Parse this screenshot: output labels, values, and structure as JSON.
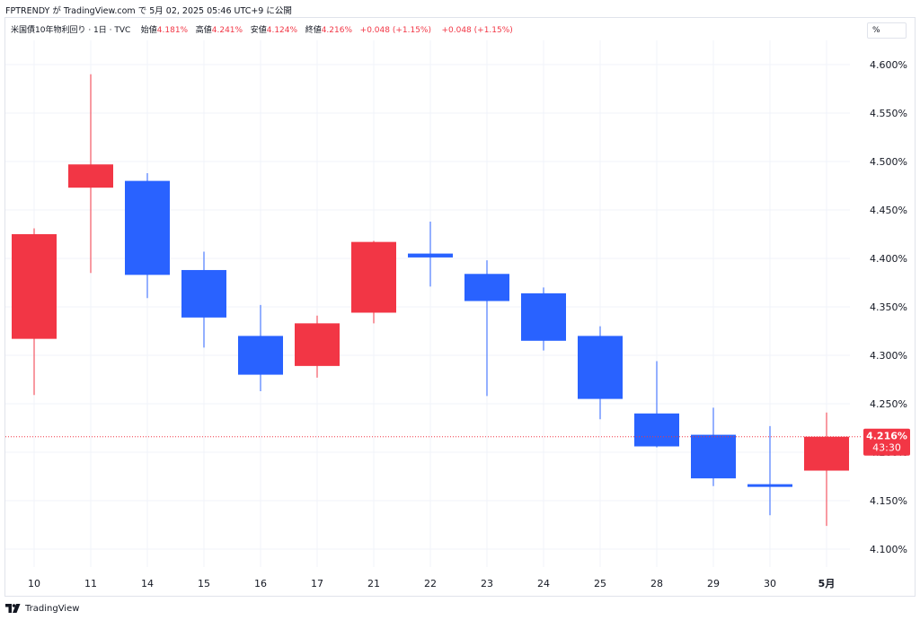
{
  "header": {
    "publish_line": "FPTRENDY が TradingView.com で 5月 02, 2025 05:46 UTC+9 に公開"
  },
  "legend": {
    "symbol": "米国債10年物利回り · 1日 · TVC",
    "open_label": "始値",
    "open_value": "4.181%",
    "high_label": "高値",
    "high_value": "4.241%",
    "low_label": "安値",
    "low_value": "4.124%",
    "close_label": "終値",
    "close_value": "4.216%",
    "change": "+0.048 (+1.15%)",
    "change2": "+0.048 (+1.15%)"
  },
  "unit_button": {
    "label": "%"
  },
  "price_tag": {
    "price": "4.216%",
    "countdown": "43:30"
  },
  "footer": {
    "brand": "TradingView"
  },
  "colors": {
    "up": "#f23645",
    "down": "#2962ff",
    "grid": "#f0f3fa",
    "text": "#131722"
  },
  "chart_data": {
    "type": "candlestick",
    "ylim": [
      4.075,
      4.63
    ],
    "y_ticks": [
      "4.100%",
      "4.150%",
      "4.200%",
      "4.250%",
      "4.300%",
      "4.350%",
      "4.400%",
      "4.450%",
      "4.500%",
      "4.550%",
      "4.600%"
    ],
    "y_tick_values": [
      4.1,
      4.15,
      4.2,
      4.25,
      4.3,
      4.35,
      4.4,
      4.45,
      4.5,
      4.55,
      4.6
    ],
    "last_price": 4.216,
    "candles": [
      {
        "label": "10",
        "bold": false,
        "open": 4.317,
        "high": 4.431,
        "low": 4.259,
        "close": 4.425
      },
      {
        "label": "11",
        "bold": false,
        "open": 4.473,
        "high": 4.59,
        "low": 4.385,
        "close": 4.497
      },
      {
        "label": "14",
        "bold": false,
        "open": 4.48,
        "high": 4.488,
        "low": 4.359,
        "close": 4.383
      },
      {
        "label": "15",
        "bold": false,
        "open": 4.388,
        "high": 4.407,
        "low": 4.308,
        "close": 4.339
      },
      {
        "label": "16",
        "bold": false,
        "open": 4.32,
        "high": 4.352,
        "low": 4.263,
        "close": 4.28
      },
      {
        "label": "17",
        "bold": false,
        "open": 4.289,
        "high": 4.341,
        "low": 4.277,
        "close": 4.333
      },
      {
        "label": "21",
        "bold": false,
        "open": 4.344,
        "high": 4.418,
        "low": 4.333,
        "close": 4.417
      },
      {
        "label": "22",
        "bold": false,
        "open": 4.405,
        "high": 4.438,
        "low": 4.371,
        "close": 4.401
      },
      {
        "label": "23",
        "bold": false,
        "open": 4.384,
        "high": 4.398,
        "low": 4.258,
        "close": 4.356
      },
      {
        "label": "24",
        "bold": false,
        "open": 4.364,
        "high": 4.37,
        "low": 4.305,
        "close": 4.315
      },
      {
        "label": "25",
        "bold": false,
        "open": 4.32,
        "high": 4.33,
        "low": 4.234,
        "close": 4.255
      },
      {
        "label": "28",
        "bold": false,
        "open": 4.24,
        "high": 4.294,
        "low": 4.205,
        "close": 4.206
      },
      {
        "label": "29",
        "bold": false,
        "open": 4.218,
        "high": 4.246,
        "low": 4.165,
        "close": 4.173
      },
      {
        "label": "30",
        "bold": false,
        "open": 4.167,
        "high": 4.227,
        "low": 4.135,
        "close": 4.165
      },
      {
        "label": "5月",
        "bold": true,
        "open": 4.181,
        "high": 4.241,
        "low": 4.124,
        "close": 4.216
      }
    ]
  }
}
